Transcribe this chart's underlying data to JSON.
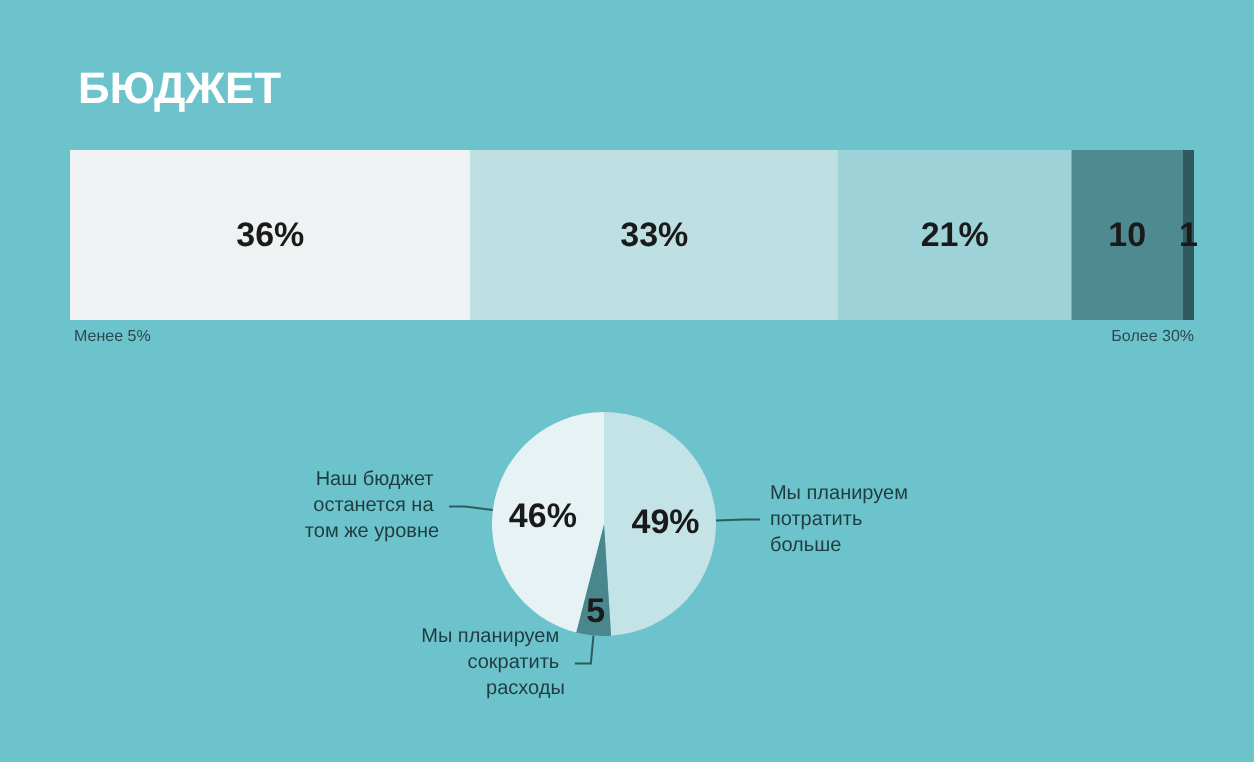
{
  "chart_data": [
    {
      "type": "bar",
      "orientation": "horizontal",
      "stacked": true,
      "title": "БЮДЖЕТ",
      "categories": [
        null
      ],
      "xlim": [
        0,
        101
      ],
      "tick_labels": false,
      "grid": false,
      "legend": false,
      "annotations": [
        "Менее 5%",
        "Более 30%"
      ],
      "series": [
        {
          "color": "#eef2f2",
          "values": [
            36
          ],
          "value_labels": [
            "36%"
          ]
        },
        {
          "color": "#bfe0e3",
          "values": [
            33
          ],
          "value_labels": [
            "33%"
          ]
        },
        {
          "color": "#9dd3d8",
          "values": [
            21
          ],
          "value_labels": [
            "21%"
          ]
        },
        {
          "color": "#4f8a90",
          "values": [
            10
          ],
          "value_labels": [
            "10"
          ]
        },
        {
          "color": "#2f5a5e",
          "values": [
            1
          ],
          "value_labels": [
            "1"
          ]
        }
      ]
    },
    {
      "type": "pie",
      "categories": [
        "Мы планируем потратить больше",
        "Мы планируем сократить расходы",
        "Наш бюджет останется на том же уровне"
      ],
      "values": [
        49,
        5,
        46
      ],
      "value_labels": [
        "49%",
        "5",
        "46%"
      ],
      "colors": [
        "#c3e3e6",
        "#4a878d",
        "#e6f2f3"
      ],
      "legend": false
    }
  ]
}
